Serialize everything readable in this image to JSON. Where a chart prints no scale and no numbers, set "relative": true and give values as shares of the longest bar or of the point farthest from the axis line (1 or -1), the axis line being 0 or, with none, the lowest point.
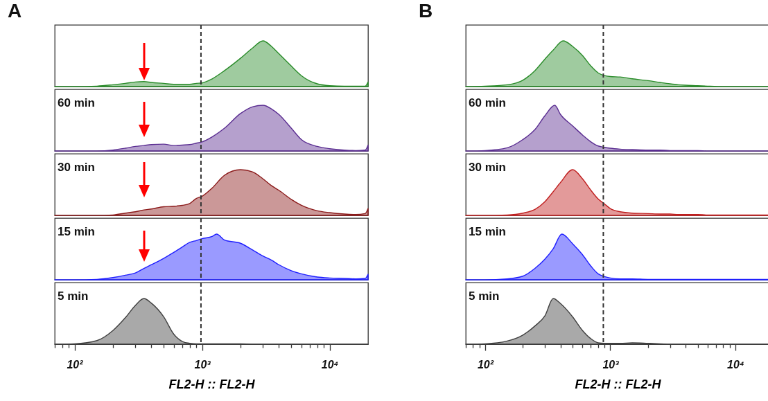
{
  "chart_data": [
    {
      "type": "area",
      "title": "A",
      "relative": true,
      "log": "x",
      "xlim": [
        70,
        20000
      ],
      "tick_labels": false,
      "color": "#2a8c2a",
      "x": [
        70,
        100,
        150,
        200,
        250,
        300,
        350,
        400,
        500,
        600,
        700,
        800,
        900,
        1000,
        1200,
        1500,
        2000,
        2500,
        3000,
        3500,
        4000,
        5000,
        6000,
        8000,
        10000,
        13000,
        16000,
        19000,
        20000
      ],
      "values": [
        0,
        0,
        0.01,
        0.04,
        0.07,
        0.1,
        0.11,
        0.09,
        0.07,
        0.05,
        0.05,
        0.05,
        0.07,
        0.08,
        0.17,
        0.35,
        0.62,
        0.85,
        1,
        0.88,
        0.72,
        0.45,
        0.24,
        0.06,
        0.02,
        0.01,
        0.01,
        0.01,
        0.1
      ],
      "ref_lines": [
        {
          "axis": "x",
          "value": 980,
          "color": "#333333",
          "line_style": "dashed"
        }
      ]
    },
    {
      "type": "area",
      "annotations": [
        "60 min"
      ],
      "relative": true,
      "log": "x",
      "xlim": [
        70,
        20000
      ],
      "tick_labels": false,
      "color": "#5a2d91",
      "x": [
        70,
        100,
        150,
        200,
        250,
        300,
        350,
        400,
        500,
        600,
        700,
        800,
        900,
        1000,
        1200,
        1500,
        2000,
        2500,
        3000,
        3500,
        4000,
        5000,
        6000,
        8000,
        10000,
        13000,
        16000,
        19000,
        20000
      ],
      "values": [
        0,
        0,
        0,
        0.02,
        0.06,
        0.1,
        0.12,
        0.14,
        0.15,
        0.12,
        0.13,
        0.14,
        0.17,
        0.2,
        0.31,
        0.5,
        0.82,
        0.97,
        1,
        0.92,
        0.8,
        0.5,
        0.25,
        0.1,
        0.05,
        0.02,
        0.01,
        0.02,
        0.13
      ],
      "ref_lines": [
        {
          "axis": "x",
          "value": 980,
          "color": "#333333",
          "line_style": "dashed"
        }
      ]
    },
    {
      "type": "area",
      "annotations": [
        "30 min"
      ],
      "relative": true,
      "log": "x",
      "xlim": [
        70,
        20000
      ],
      "tick_labels": false,
      "color": "#8b1a1a",
      "x": [
        70,
        100,
        150,
        200,
        250,
        300,
        350,
        400,
        500,
        600,
        700,
        800,
        900,
        1000,
        1200,
        1500,
        2000,
        2500,
        3000,
        3500,
        4000,
        5000,
        6000,
        8000,
        10000,
        13000,
        16000,
        19000,
        20000
      ],
      "values": [
        0,
        0,
        0,
        0.01,
        0.05,
        0.08,
        0.12,
        0.14,
        0.19,
        0.2,
        0.22,
        0.26,
        0.37,
        0.42,
        0.6,
        0.88,
        1,
        0.95,
        0.8,
        0.65,
        0.55,
        0.35,
        0.22,
        0.1,
        0.06,
        0.03,
        0.02,
        0.04,
        0.15
      ],
      "ref_lines": [
        {
          "axis": "x",
          "value": 980,
          "color": "#333333",
          "line_style": "dashed"
        }
      ]
    },
    {
      "type": "area",
      "annotations": [
        "15 min"
      ],
      "relative": true,
      "log": "x",
      "xlim": [
        70,
        20000
      ],
      "tick_labels": false,
      "color": "#1f1fff",
      "x": [
        70,
        100,
        150,
        200,
        250,
        300,
        350,
        400,
        500,
        600,
        700,
        800,
        900,
        1000,
        1200,
        1300,
        1500,
        2000,
        2500,
        3000,
        3500,
        4000,
        5000,
        6000,
        8000,
        10000,
        13000,
        16000,
        19000,
        20000
      ],
      "values": [
        0,
        0,
        0.01,
        0.05,
        0.1,
        0.15,
        0.25,
        0.33,
        0.47,
        0.6,
        0.72,
        0.82,
        0.86,
        0.9,
        0.95,
        1,
        0.87,
        0.8,
        0.65,
        0.52,
        0.43,
        0.33,
        0.2,
        0.13,
        0.06,
        0.04,
        0.03,
        0.02,
        0.03,
        0.12
      ],
      "ref_lines": [
        {
          "axis": "x",
          "value": 980,
          "color": "#333333",
          "line_style": "dashed"
        }
      ]
    },
    {
      "type": "area",
      "annotations": [
        "5 min"
      ],
      "relative": true,
      "log": "x",
      "xlim": [
        70,
        20000
      ],
      "xlabel": "FL2-H :: FL2-H",
      "tick_labels": "x",
      "color": "#404040",
      "x": [
        70,
        100,
        150,
        200,
        250,
        300,
        350,
        400,
        500,
        600,
        700,
        800,
        900,
        1000,
        1200,
        1500,
        2000,
        2500,
        3000,
        3500,
        4000,
        5000,
        6000,
        8000,
        10000,
        13000,
        16000,
        19000,
        20000
      ],
      "values": [
        0,
        0.01,
        0.08,
        0.3,
        0.58,
        0.85,
        1,
        0.9,
        0.6,
        0.22,
        0.06,
        0.02,
        0.01,
        0.01,
        0.01,
        0.01,
        0.01,
        0,
        0,
        0,
        0,
        0,
        0,
        0,
        0,
        0,
        0,
        0,
        0
      ],
      "ref_lines": [
        {
          "axis": "x",
          "value": 980,
          "color": "#333333",
          "line_style": "dashed"
        }
      ],
      "xticks": [
        {
          "value": 70,
          "label": null
        },
        {
          "value": 80,
          "label": null
        },
        {
          "value": 90,
          "label": null
        },
        {
          "value": 100,
          "label": "10²"
        },
        {
          "value": 200,
          "label": null
        },
        {
          "value": 300,
          "label": null
        },
        {
          "value": 400,
          "label": null
        },
        {
          "value": 500,
          "label": null
        },
        {
          "value": 600,
          "label": null
        },
        {
          "value": 700,
          "label": null
        },
        {
          "value": 800,
          "label": null
        },
        {
          "value": 900,
          "label": null
        },
        {
          "value": 1000,
          "label": "10³"
        },
        {
          "value": 2000,
          "label": null
        },
        {
          "value": 3000,
          "label": null
        },
        {
          "value": 4000,
          "label": null
        },
        {
          "value": 5000,
          "label": null
        },
        {
          "value": 6000,
          "label": null
        },
        {
          "value": 7000,
          "label": null
        },
        {
          "value": 8000,
          "label": null
        },
        {
          "value": 9000,
          "label": null
        },
        {
          "value": 10000,
          "label": "10⁴"
        }
      ]
    },
    {
      "type": "area",
      "title": "B",
      "relative": true,
      "log": "x",
      "xlim": [
        70,
        18700
      ],
      "tick_labels": false,
      "color": "#2a8c2a",
      "x": [
        70,
        100,
        150,
        200,
        250,
        300,
        350,
        420,
        500,
        600,
        700,
        800,
        900,
        1000,
        1200,
        1500,
        2000,
        2500,
        3000,
        3500,
        4000,
        5000,
        6000,
        8000,
        10000,
        13000,
        16000,
        18700
      ],
      "values": [
        0,
        0.01,
        0.04,
        0.14,
        0.35,
        0.6,
        0.8,
        1,
        0.88,
        0.68,
        0.45,
        0.3,
        0.24,
        0.22,
        0.21,
        0.17,
        0.13,
        0.09,
        0.06,
        0.04,
        0.03,
        0.02,
        0.01,
        0,
        0,
        0,
        0,
        0
      ],
      "ref_lines": [
        {
          "axis": "x",
          "value": 880,
          "color": "#333333",
          "line_style": "dashed"
        }
      ]
    },
    {
      "type": "area",
      "annotations": [
        "60 min"
      ],
      "relative": true,
      "log": "x",
      "xlim": [
        70,
        18700
      ],
      "tick_labels": false,
      "color": "#5a2d91",
      "x": [
        70,
        100,
        150,
        200,
        250,
        300,
        360,
        400,
        500,
        600,
        700,
        800,
        900,
        1000,
        1200,
        1500,
        2000,
        2500,
        3000,
        3500,
        4000,
        5000,
        6000,
        8000,
        10000,
        13000,
        16000,
        18700
      ],
      "values": [
        0,
        0.01,
        0.07,
        0.25,
        0.47,
        0.77,
        1,
        0.8,
        0.55,
        0.35,
        0.2,
        0.11,
        0.08,
        0.06,
        0.04,
        0.03,
        0.02,
        0.02,
        0.01,
        0.01,
        0.01,
        0.01,
        0,
        0,
        0,
        0,
        0,
        0
      ],
      "ref_lines": [
        {
          "axis": "x",
          "value": 880,
          "color": "#333333",
          "line_style": "dashed"
        }
      ]
    },
    {
      "type": "area",
      "annotations": [
        "30 min"
      ],
      "relative": true,
      "log": "x",
      "xlim": [
        70,
        18700
      ],
      "tick_labels": false,
      "color": "#c02020",
      "x": [
        70,
        100,
        150,
        200,
        250,
        300,
        350,
        400,
        500,
        600,
        700,
        800,
        900,
        1000,
        1200,
        1500,
        2000,
        2500,
        3000,
        3500,
        4000,
        5000,
        6000,
        8000,
        10000,
        13000,
        16000,
        18700
      ],
      "values": [
        0,
        0,
        0.01,
        0.05,
        0.13,
        0.3,
        0.52,
        0.72,
        1,
        0.8,
        0.55,
        0.36,
        0.25,
        0.15,
        0.08,
        0.05,
        0.04,
        0.03,
        0.03,
        0.02,
        0.02,
        0.02,
        0.01,
        0.01,
        0.01,
        0.01,
        0.01,
        0.01
      ],
      "ref_lines": [
        {
          "axis": "x",
          "value": 880,
          "color": "#333333",
          "line_style": "dashed"
        }
      ]
    },
    {
      "type": "area",
      "annotations": [
        "15 min"
      ],
      "relative": true,
      "log": "x",
      "xlim": [
        70,
        18700
      ],
      "tick_labels": false,
      "color": "#1f1fff",
      "x": [
        70,
        100,
        150,
        200,
        250,
        300,
        350,
        410,
        500,
        600,
        700,
        800,
        900,
        1000,
        1200,
        1500,
        2000,
        2500,
        3000,
        3500,
        4000,
        5000,
        6000,
        8000,
        10000,
        13000,
        16000,
        18700
      ],
      "values": [
        0,
        0,
        0.02,
        0.08,
        0.25,
        0.45,
        0.68,
        1,
        0.79,
        0.55,
        0.3,
        0.13,
        0.07,
        0.04,
        0.02,
        0.02,
        0.01,
        0.01,
        0.01,
        0.01,
        0.01,
        0.01,
        0.01,
        0.01,
        0.01,
        0.01,
        0.01,
        0.01
      ],
      "ref_lines": [
        {
          "axis": "x",
          "value": 880,
          "color": "#333333",
          "line_style": "dashed"
        }
      ]
    },
    {
      "type": "area",
      "annotations": [
        "5 min"
      ],
      "relative": true,
      "log": "x",
      "xlim": [
        70,
        18700
      ],
      "xlabel": "FL2-H :: FL2-H",
      "tick_labels": "x",
      "color": "#404040",
      "x": [
        70,
        100,
        150,
        200,
        250,
        300,
        350,
        400,
        500,
        600,
        700,
        800,
        900,
        1000,
        1200,
        1500,
        2000,
        2500,
        3000,
        3500,
        4000,
        5000,
        6000,
        8000,
        10000,
        13000,
        16000,
        18700
      ],
      "values": [
        0,
        0.01,
        0.07,
        0.2,
        0.4,
        0.62,
        1,
        0.89,
        0.6,
        0.3,
        0.12,
        0.03,
        0.02,
        0.02,
        0.02,
        0.03,
        0.02,
        0.01,
        0,
        0,
        0,
        0,
        0,
        0,
        0,
        0,
        0,
        0
      ],
      "ref_lines": [
        {
          "axis": "x",
          "value": 880,
          "color": "#333333",
          "line_style": "dashed"
        }
      ],
      "xticks": [
        {
          "value": 70,
          "label": null
        },
        {
          "value": 80,
          "label": null
        },
        {
          "value": 90,
          "label": null
        },
        {
          "value": 100,
          "label": "10²"
        },
        {
          "value": 200,
          "label": null
        },
        {
          "value": 300,
          "label": null
        },
        {
          "value": 400,
          "label": null
        },
        {
          "value": 500,
          "label": null
        },
        {
          "value": 600,
          "label": null
        },
        {
          "value": 700,
          "label": null
        },
        {
          "value": 800,
          "label": null
        },
        {
          "value": 900,
          "label": null
        },
        {
          "value": 1000,
          "label": "10³"
        },
        {
          "value": 2000,
          "label": null
        },
        {
          "value": 3000,
          "label": null
        },
        {
          "value": 4000,
          "label": null
        },
        {
          "value": 5000,
          "label": null
        },
        {
          "value": 6000,
          "label": null
        },
        {
          "value": 7000,
          "label": null
        },
        {
          "value": 8000,
          "label": null
        },
        {
          "value": 9000,
          "label": null
        },
        {
          "value": 10000,
          "label": "10⁴"
        }
      ]
    }
  ]
}
